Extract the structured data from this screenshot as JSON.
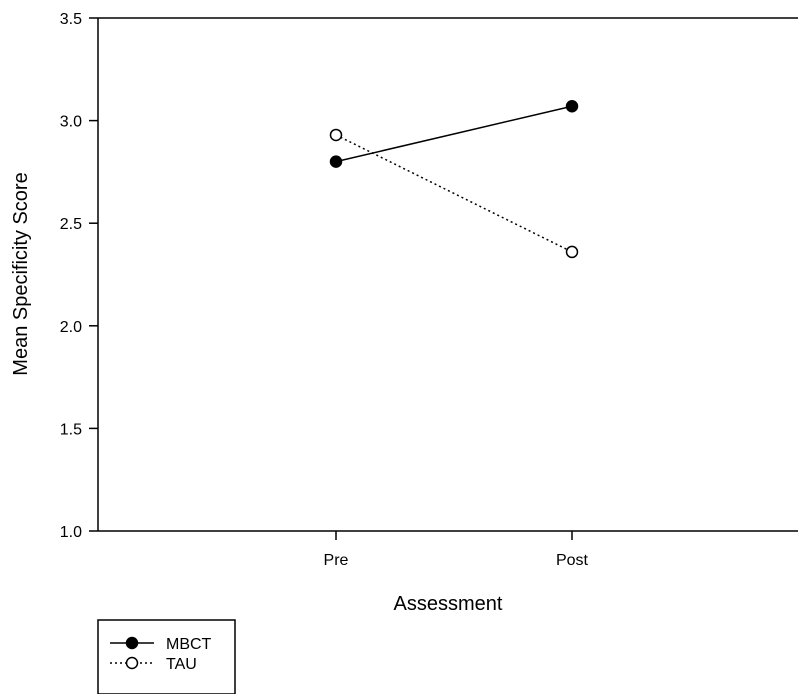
{
  "chart_data": {
    "type": "line",
    "title": "",
    "xlabel": "Assessment",
    "ylabel": "Mean Specificity Score",
    "categories": [
      "Pre",
      "Post"
    ],
    "ylim": [
      1.0,
      3.5
    ],
    "yticks": [
      "1.0",
      "1.5",
      "2.0",
      "2.5",
      "3.0",
      "3.5"
    ],
    "grid": false,
    "legend_position": "bottom-left",
    "series": [
      {
        "name": "MBCT",
        "values": [
          2.8,
          3.07
        ],
        "line": "solid",
        "marker": "filled-circle"
      },
      {
        "name": "TAU",
        "values": [
          2.93,
          2.36
        ],
        "line": "dotted",
        "marker": "open-circle"
      }
    ]
  }
}
